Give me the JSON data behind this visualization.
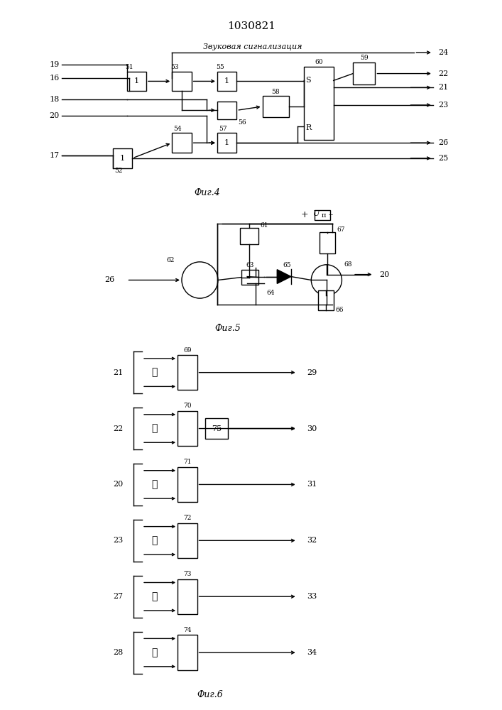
{
  "title": "1030821",
  "fig4_label": "Фиг.4",
  "fig5_label": "Фиг.5",
  "fig6_label": "Фиг.6",
  "zvuk_label": "Звуковая сигнализация",
  "bg_color": "#ffffff",
  "line_color": "#000000"
}
